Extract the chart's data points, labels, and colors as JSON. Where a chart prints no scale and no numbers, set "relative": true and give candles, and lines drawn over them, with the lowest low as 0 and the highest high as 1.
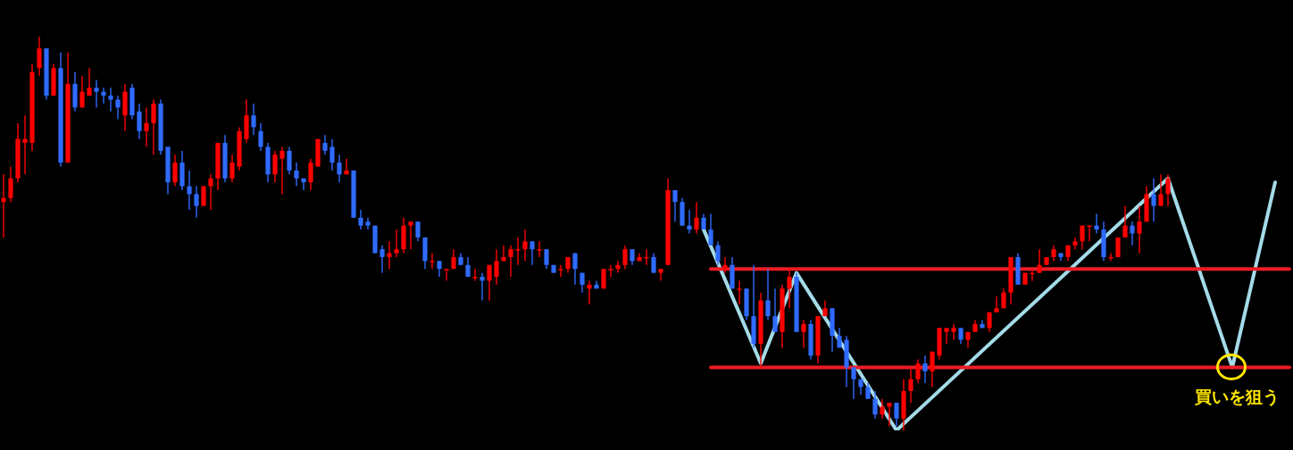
{
  "chart_data": {
    "type": "candlestick",
    "relative": true,
    "tick_labels": false,
    "categories": [
      null,
      null,
      null,
      null,
      null,
      null,
      null,
      null,
      null,
      null,
      null,
      null,
      null,
      null,
      null,
      null,
      null,
      null,
      null,
      null,
      null,
      null,
      null,
      null,
      null,
      null,
      null,
      null,
      null,
      null,
      null,
      null,
      null,
      null,
      null,
      null,
      null,
      null,
      null,
      null,
      null,
      null,
      null,
      null,
      null,
      null,
      null,
      null,
      null,
      null,
      null,
      null,
      null,
      null,
      null,
      null,
      null,
      null,
      null,
      null,
      null,
      null,
      null,
      null,
      null,
      null,
      null,
      null,
      null,
      null,
      null,
      null,
      null,
      null,
      null,
      null,
      null,
      null,
      null,
      null,
      null,
      null,
      null,
      null,
      null,
      null,
      null,
      null,
      null,
      null,
      null,
      null,
      null,
      null,
      null,
      null,
      null,
      null,
      null,
      null,
      null,
      null,
      null,
      null,
      null,
      null,
      null,
      null,
      null,
      null,
      null,
      null,
      null,
      null,
      null,
      null,
      null,
      null,
      null,
      null,
      null,
      null,
      null,
      null,
      null,
      null,
      null,
      null,
      null,
      null,
      null,
      null,
      null,
      null,
      null,
      null,
      null,
      null,
      null,
      null,
      null,
      null,
      null,
      null,
      null,
      null,
      null,
      null,
      null,
      null,
      null,
      null,
      null,
      null,
      null,
      null,
      null,
      null,
      null,
      null,
      null,
      null,
      null,
      null,
      null,
      null,
      null,
      null,
      null,
      null,
      null,
      null,
      null,
      null,
      null,
      null,
      null,
      null,
      null,
      null,
      null
    ],
    "ohlc": [
      [
        0.58,
        0.65,
        0.49,
        0.59
      ],
      [
        0.59,
        0.67,
        0.58,
        0.64
      ],
      [
        0.64,
        0.78,
        0.63,
        0.74
      ],
      [
        0.73,
        0.8,
        0.65,
        0.74
      ],
      [
        0.73,
        0.93,
        0.71,
        0.91
      ],
      [
        0.92,
        1,
        0.9,
        0.97
      ],
      [
        0.97,
        0.97,
        0.84,
        0.85
      ],
      [
        0.85,
        0.93,
        0.85,
        0.92
      ],
      [
        0.92,
        0.96,
        0.67,
        0.68
      ],
      [
        0.68,
        0.96,
        0.68,
        0.88
      ],
      [
        0.88,
        0.91,
        0.81,
        0.82
      ],
      [
        0.82,
        0.9,
        0.82,
        0.86
      ],
      [
        0.85,
        0.92,
        0.85,
        0.87
      ],
      [
        0.87,
        0.89,
        0.82,
        0.86
      ],
      [
        0.86,
        0.87,
        0.83,
        0.85
      ],
      [
        0.85,
        0.87,
        0.81,
        0.84
      ],
      [
        0.84,
        0.85,
        0.79,
        0.82
      ],
      [
        0.8,
        0.88,
        0.76,
        0.86
      ],
      [
        0.87,
        0.88,
        0.79,
        0.8
      ],
      [
        0.81,
        0.83,
        0.74,
        0.76
      ],
      [
        0.76,
        0.82,
        0.72,
        0.78
      ],
      [
        0.78,
        0.84,
        0.7,
        0.83
      ],
      [
        0.83,
        0.84,
        0.7,
        0.71
      ],
      [
        0.72,
        0.72,
        0.6,
        0.63
      ],
      [
        0.63,
        0.7,
        0.62,
        0.68
      ],
      [
        0.68,
        0.71,
        0.61,
        0.62
      ],
      [
        0.62,
        0.66,
        0.56,
        0.6
      ],
      [
        0.6,
        0.62,
        0.54,
        0.57
      ],
      [
        0.57,
        0.62,
        0.57,
        0.62
      ],
      [
        0.62,
        0.65,
        0.56,
        0.64
      ],
      [
        0.64,
        0.73,
        0.61,
        0.73
      ],
      [
        0.73,
        0.75,
        0.63,
        0.64
      ],
      [
        0.64,
        0.7,
        0.63,
        0.68
      ],
      [
        0.67,
        0.77,
        0.66,
        0.76
      ],
      [
        0.74,
        0.84,
        0.73,
        0.8
      ],
      [
        0.8,
        0.83,
        0.75,
        0.77
      ],
      [
        0.76,
        0.78,
        0.71,
        0.72
      ],
      [
        0.72,
        0.73,
        0.63,
        0.65
      ],
      [
        0.65,
        0.71,
        0.63,
        0.7
      ],
      [
        0.69,
        0.72,
        0.6,
        0.71
      ],
      [
        0.71,
        0.72,
        0.65,
        0.66
      ],
      [
        0.66,
        0.68,
        0.62,
        0.64
      ],
      [
        0.64,
        0.64,
        0.61,
        0.63
      ],
      [
        0.63,
        0.69,
        0.61,
        0.68
      ],
      [
        0.67,
        0.74,
        0.67,
        0.74
      ],
      [
        0.73,
        0.75,
        0.7,
        0.71
      ],
      [
        0.72,
        0.74,
        0.66,
        0.68
      ],
      [
        0.68,
        0.7,
        0.63,
        0.65
      ],
      [
        0.65,
        0.69,
        0.65,
        0.66
      ],
      [
        0.66,
        0.66,
        0.54,
        0.54
      ],
      [
        0.54,
        0.56,
        0.51,
        0.52
      ],
      [
        0.53,
        0.54,
        0.51,
        0.52
      ],
      [
        0.52,
        0.52,
        0.45,
        0.45
      ],
      [
        0.46,
        0.47,
        0.4,
        0.44
      ],
      [
        0.44,
        0.48,
        0.41,
        0.45
      ],
      [
        0.45,
        0.51,
        0.44,
        0.46
      ],
      [
        0.46,
        0.54,
        0.45,
        0.52
      ],
      [
        0.52,
        0.53,
        0.46,
        0.53
      ],
      [
        0.53,
        0.53,
        0.48,
        0.49
      ],
      [
        0.49,
        0.49,
        0.41,
        0.43
      ],
      [
        0.43,
        0.45,
        0.41,
        0.43
      ],
      [
        0.43,
        0.43,
        0.39,
        0.41
      ],
      [
        0.41,
        0.41,
        0.38,
        0.41
      ],
      [
        0.41,
        0.46,
        0.41,
        0.44
      ],
      [
        0.44,
        0.45,
        0.42,
        0.42
      ],
      [
        0.42,
        0.44,
        0.39,
        0.39
      ],
      [
        0.39,
        0.41,
        0.38,
        0.39
      ],
      [
        0.39,
        0.4,
        0.33,
        0.38
      ],
      [
        0.38,
        0.42,
        0.33,
        0.42
      ],
      [
        0.39,
        0.46,
        0.37,
        0.43
      ],
      [
        0.43,
        0.47,
        0.43,
        0.44
      ],
      [
        0.44,
        0.47,
        0.39,
        0.46
      ],
      [
        0.46,
        0.49,
        0.42,
        0.46
      ],
      [
        0.46,
        0.51,
        0.43,
        0.48
      ],
      [
        0.48,
        0.48,
        0.42,
        0.46
      ],
      [
        0.46,
        0.48,
        0.44,
        0.46
      ],
      [
        0.46,
        0.46,
        0.41,
        0.42
      ],
      [
        0.42,
        0.42,
        0.4,
        0.4
      ],
      [
        0.41,
        0.42,
        0.39,
        0.41
      ],
      [
        0.41,
        0.44,
        0.4,
        0.44
      ],
      [
        0.45,
        0.45,
        0.37,
        0.41
      ],
      [
        0.4,
        0.4,
        0.35,
        0.37
      ],
      [
        0.36,
        0.38,
        0.32,
        0.37
      ],
      [
        0.37,
        0.38,
        0.36,
        0.36
      ],
      [
        0.36,
        0.41,
        0.36,
        0.41
      ],
      [
        0.41,
        0.42,
        0.39,
        0.41
      ],
      [
        0.41,
        0.43,
        0.4,
        0.42
      ],
      [
        0.42,
        0.47,
        0.41,
        0.46
      ],
      [
        0.46,
        0.46,
        0.42,
        0.43
      ],
      [
        0.43,
        0.45,
        0.43,
        0.44
      ],
      [
        0.44,
        0.46,
        0.42,
        0.44
      ],
      [
        0.44,
        0.45,
        0.4,
        0.4
      ],
      [
        0.4,
        0.41,
        0.38,
        0.41
      ],
      [
        0.42,
        0.64,
        0.42,
        0.61
      ],
      [
        0.61,
        0.61,
        0.53,
        0.58
      ],
      [
        0.58,
        0.59,
        0.52,
        0.52
      ],
      [
        0.52,
        0.56,
        0.5,
        0.51
      ],
      [
        0.51,
        0.58,
        0.5,
        0.54
      ],
      [
        0.54,
        0.55,
        0.51,
        0.51
      ],
      [
        0.51,
        0.55,
        0.47,
        0.47
      ],
      [
        0.47,
        0.48,
        0.42,
        0.43
      ],
      [
        0.41,
        0.44,
        0.4,
        0.42
      ],
      [
        0.42,
        0.44,
        0.36,
        0.36
      ],
      [
        0.36,
        0.38,
        0.32,
        0.36
      ],
      [
        0.36,
        0.36,
        0.28,
        0.29
      ],
      [
        0.29,
        0.42,
        0.21,
        0.22
      ],
      [
        0.22,
        0.35,
        0.16,
        0.33
      ],
      [
        0.33,
        0.41,
        0.28,
        0.29
      ],
      [
        0.29,
        0.36,
        0.25,
        0.25
      ],
      [
        0.25,
        0.37,
        0.21,
        0.36
      ],
      [
        0.36,
        0.41,
        0.31,
        0.39
      ],
      [
        0.39,
        0.4,
        0.25,
        0.25
      ],
      [
        0.25,
        0.28,
        0.21,
        0.27
      ],
      [
        0.27,
        0.28,
        0.18,
        0.19
      ],
      [
        0.19,
        0.29,
        0.17,
        0.29
      ],
      [
        0.29,
        0.33,
        0.29,
        0.31
      ],
      [
        0.31,
        0.31,
        0.2,
        0.24
      ],
      [
        0.24,
        0.26,
        0.21,
        0.21
      ],
      [
        0.23,
        0.24,
        0.11,
        0.16
      ],
      [
        0.16,
        0.16,
        0.08,
        0.13
      ],
      [
        0.13,
        0.13,
        0.09,
        0.11
      ],
      [
        0.11,
        0.12,
        0.08,
        0.08
      ],
      [
        0.08,
        0.1,
        0.03,
        0.04
      ],
      [
        0.04,
        0.08,
        0.03,
        0.06
      ],
      [
        0.06,
        0.07,
        0.01,
        0.07
      ],
      [
        0.07,
        0.07,
        0.01,
        0.03
      ],
      [
        0.03,
        0.13,
        0,
        0.1
      ],
      [
        0.1,
        0.16,
        0.07,
        0.13
      ],
      [
        0.13,
        0.18,
        0.12,
        0.17
      ],
      [
        0.17,
        0.19,
        0.12,
        0.15
      ],
      [
        0.15,
        0.2,
        0.11,
        0.2
      ],
      [
        0.19,
        0.26,
        0.18,
        0.26
      ],
      [
        0.25,
        0.26,
        0.22,
        0.26
      ],
      [
        0.25,
        0.27,
        0.23,
        0.26
      ],
      [
        0.26,
        0.26,
        0.22,
        0.23
      ],
      [
        0.23,
        0.25,
        0.21,
        0.25
      ],
      [
        0.25,
        0.28,
        0.25,
        0.27
      ],
      [
        0.27,
        0.28,
        0.26,
        0.26
      ],
      [
        0.26,
        0.3,
        0.25,
        0.3
      ],
      [
        0.3,
        0.34,
        0.3,
        0.31
      ],
      [
        0.31,
        0.36,
        0.31,
        0.35
      ],
      [
        0.35,
        0.44,
        0.32,
        0.44
      ],
      [
        0.44,
        0.45,
        0.37,
        0.37
      ],
      [
        0.37,
        0.4,
        0.37,
        0.4
      ],
      [
        0.4,
        0.41,
        0.38,
        0.4
      ],
      [
        0.4,
        0.46,
        0.4,
        0.42
      ],
      [
        0.42,
        0.44,
        0.42,
        0.44
      ],
      [
        0.44,
        0.47,
        0.43,
        0.46
      ],
      [
        0.45,
        0.45,
        0.43,
        0.44
      ],
      [
        0.44,
        0.47,
        0.43,
        0.47
      ],
      [
        0.47,
        0.49,
        0.46,
        0.48
      ],
      [
        0.48,
        0.52,
        0.46,
        0.52
      ],
      [
        0.52,
        0.52,
        0.48,
        0.52
      ],
      [
        0.52,
        0.55,
        0.5,
        0.51
      ],
      [
        0.51,
        0.53,
        0.43,
        0.44
      ],
      [
        0.44,
        0.45,
        0.43,
        0.44
      ],
      [
        0.44,
        0.49,
        0.44,
        0.49
      ],
      [
        0.49,
        0.57,
        0.49,
        0.52
      ],
      [
        0.52,
        0.53,
        0.47,
        0.5
      ],
      [
        0.5,
        0.57,
        0.45,
        0.53
      ],
      [
        0.53,
        0.62,
        0.53,
        0.6
      ],
      [
        0.6,
        0.64,
        0.53,
        0.57
      ],
      [
        0.57,
        0.65,
        0.57,
        0.6
      ],
      [
        0.6,
        0.65,
        0.57,
        0.64
      ],
      null,
      null,
      null,
      null,
      null,
      null,
      null,
      null,
      null,
      null,
      null,
      null,
      null,
      null,
      null,
      null,
      null
    ],
    "colors": [
      "#ff0000",
      "#ff0000",
      "#ff0000",
      "#ff0000",
      "#ff0000",
      "#ff0000",
      "#2f6bff",
      "#ff0000",
      "#2f6bff",
      "#ff0000",
      "#2f6bff",
      "#ff0000",
      "#ff0000",
      "#2f6bff",
      "#2f6bff",
      "#2f6bff",
      "#2f6bff",
      "#ff0000",
      "#2f6bff",
      "#2f6bff",
      "#ff0000",
      "#ff0000",
      "#2f6bff",
      "#2f6bff",
      "#ff0000",
      "#2f6bff",
      "#2f6bff",
      "#2f6bff",
      "#ff0000",
      "#ff0000",
      "#ff0000",
      "#2f6bff",
      "#ff0000",
      "#ff0000",
      "#ff0000",
      "#2f6bff",
      "#2f6bff",
      "#2f6bff",
      "#ff0000",
      "#ff0000",
      "#2f6bff",
      "#2f6bff",
      "#2f6bff",
      "#ff0000",
      "#ff0000",
      "#2f6bff",
      "#2f6bff",
      "#2f6bff",
      "#ff0000",
      "#2f6bff",
      "#2f6bff",
      "#2f6bff",
      "#2f6bff",
      "#2f6bff",
      "#ff0000",
      "#ff0000",
      "#ff0000",
      "#ff0000",
      "#2f6bff",
      "#2f6bff",
      "#ff0000",
      "#2f6bff",
      "#ff0000",
      "#ff0000",
      "#2f6bff",
      "#2f6bff",
      "#ff0000",
      "#2f6bff",
      "#ff0000",
      "#ff0000",
      "#ff0000",
      "#ff0000",
      "#ff0000",
      "#ff0000",
      "#2f6bff",
      "#ff0000",
      "#2f6bff",
      "#2f6bff",
      "#ff0000",
      "#ff0000",
      "#2f6bff",
      "#2f6bff",
      "#ff0000",
      "#2f6bff",
      "#ff0000",
      "#ff0000",
      "#ff0000",
      "#ff0000",
      "#2f6bff",
      "#ff0000",
      "#ff0000",
      "#2f6bff",
      "#ff0000",
      "#ff0000",
      "#2f6bff",
      "#2f6bff",
      "#2f6bff",
      "#ff0000",
      "#2f6bff",
      "#2f6bff",
      "#2f6bff",
      "#ff0000",
      "#2f6bff",
      "#ff0000",
      "#2f6bff",
      "#2f6bff",
      "#ff0000",
      "#2f6bff",
      "#2f6bff",
      "#ff0000",
      "#ff0000",
      "#2f6bff",
      "#ff0000",
      "#2f6bff",
      "#ff0000",
      "#ff0000",
      "#2f6bff",
      "#2f6bff",
      "#2f6bff",
      "#2f6bff",
      "#2f6bff",
      "#2f6bff",
      "#2f6bff",
      "#ff0000",
      "#ff0000",
      "#2f6bff",
      "#ff0000",
      "#ff0000",
      "#ff0000",
      "#2f6bff",
      "#ff0000",
      "#ff0000",
      "#ff0000",
      "#ff0000",
      "#2f6bff",
      "#ff0000",
      "#ff0000",
      "#2f6bff",
      "#ff0000",
      "#ff0000",
      "#ff0000",
      "#ff0000",
      "#2f6bff",
      "#ff0000",
      "#ff0000",
      "#ff0000",
      "#ff0000",
      "#ff0000",
      "#2f6bff",
      "#ff0000",
      "#ff0000",
      "#ff0000",
      "#ff0000",
      "#2f6bff",
      "#2f6bff",
      "#ff0000",
      "#ff0000",
      "#ff0000",
      "#2f6bff",
      "#ff0000",
      "#ff0000",
      "#2f6bff",
      "#ff0000",
      "#ff0000",
      null,
      null,
      null,
      null,
      null,
      null,
      null,
      null,
      null,
      null,
      null,
      null,
      null,
      null,
      null,
      null,
      null
    ],
    "series": [
      {
        "type": "line",
        "color": "#ee1c25",
        "values": [
          null,
          null,
          null,
          null,
          null,
          null,
          null,
          null,
          null,
          null,
          null,
          null,
          null,
          null,
          null,
          null,
          null,
          null,
          null,
          null,
          null,
          null,
          null,
          null,
          null,
          null,
          null,
          null,
          null,
          null,
          null,
          null,
          null,
          null,
          null,
          null,
          null,
          null,
          null,
          null,
          null,
          null,
          null,
          null,
          null,
          null,
          null,
          null,
          null,
          null,
          null,
          null,
          null,
          null,
          null,
          null,
          null,
          null,
          null,
          null,
          null,
          null,
          null,
          null,
          null,
          null,
          null,
          null,
          null,
          null,
          null,
          null,
          null,
          null,
          null,
          null,
          null,
          null,
          null,
          null,
          null,
          null,
          null,
          null,
          null,
          null,
          null,
          null,
          null,
          null,
          null,
          null,
          null,
          null,
          null,
          null,
          null,
          null,
          null,
          0.41,
          null,
          null,
          null,
          null,
          null,
          null,
          null,
          null,
          null,
          null,
          null,
          null,
          null,
          null,
          null,
          null,
          null,
          null,
          null,
          null,
          null,
          null,
          null,
          null,
          null,
          null,
          null,
          null,
          null,
          null,
          null,
          null,
          null,
          null,
          null,
          null,
          null,
          null,
          null,
          null,
          null,
          null,
          null,
          null,
          null,
          null,
          null,
          null,
          null,
          null,
          null,
          null,
          null,
          null,
          null,
          null,
          null,
          null,
          null,
          null,
          null,
          null,
          null,
          null,
          null,
          null,
          null,
          null,
          null,
          null,
          null,
          null,
          null,
          null,
          null,
          null,
          null,
          null,
          null,
          null,
          0.41
        ]
      },
      {
        "type": "line",
        "color": "#ee1c25",
        "values": [
          null,
          null,
          null,
          null,
          null,
          null,
          null,
          null,
          null,
          null,
          null,
          null,
          null,
          null,
          null,
          null,
          null,
          null,
          null,
          null,
          null,
          null,
          null,
          null,
          null,
          null,
          null,
          null,
          null,
          null,
          null,
          null,
          null,
          null,
          null,
          null,
          null,
          null,
          null,
          null,
          null,
          null,
          null,
          null,
          null,
          null,
          null,
          null,
          null,
          null,
          null,
          null,
          null,
          null,
          null,
          null,
          null,
          null,
          null,
          null,
          null,
          null,
          null,
          null,
          null,
          null,
          null,
          null,
          null,
          null,
          null,
          null,
          null,
          null,
          null,
          null,
          null,
          null,
          null,
          null,
          null,
          null,
          null,
          null,
          null,
          null,
          null,
          null,
          null,
          null,
          null,
          null,
          null,
          null,
          null,
          null,
          null,
          null,
          null,
          0.16,
          null,
          null,
          null,
          null,
          null,
          null,
          null,
          null,
          null,
          null,
          null,
          null,
          null,
          null,
          null,
          null,
          null,
          null,
          null,
          null,
          null,
          null,
          null,
          null,
          null,
          null,
          null,
          null,
          null,
          null,
          null,
          null,
          null,
          null,
          null,
          null,
          null,
          null,
          null,
          null,
          null,
          null,
          null,
          null,
          null,
          null,
          null,
          null,
          null,
          null,
          null,
          null,
          null,
          null,
          null,
          null,
          null,
          null,
          null,
          null,
          null,
          null,
          null,
          null,
          null,
          null,
          null,
          null,
          null,
          null,
          null,
          null,
          null,
          null,
          null,
          null,
          null,
          null,
          null,
          null,
          0.16
        ]
      },
      {
        "type": "line",
        "color": "#a4dbe8",
        "values": [
          null,
          null,
          null,
          null,
          null,
          null,
          null,
          null,
          null,
          null,
          null,
          null,
          null,
          null,
          null,
          null,
          null,
          null,
          null,
          null,
          null,
          null,
          null,
          null,
          null,
          null,
          null,
          null,
          null,
          null,
          null,
          null,
          null,
          null,
          null,
          null,
          null,
          null,
          null,
          null,
          null,
          null,
          null,
          null,
          null,
          null,
          null,
          null,
          null,
          null,
          null,
          null,
          null,
          null,
          null,
          null,
          null,
          null,
          null,
          null,
          null,
          null,
          null,
          null,
          null,
          null,
          null,
          null,
          null,
          null,
          null,
          null,
          null,
          null,
          null,
          null,
          null,
          null,
          null,
          null,
          null,
          null,
          null,
          null,
          null,
          null,
          null,
          null,
          null,
          null,
          null,
          null,
          null,
          null,
          null,
          null,
          null,
          null,
          0.51,
          null,
          null,
          null,
          null,
          null,
          null,
          null,
          0.17,
          null,
          null,
          null,
          null,
          0.4,
          null,
          null,
          null,
          null,
          null,
          null,
          null,
          null,
          null,
          null,
          null,
          null,
          null,
          0,
          null,
          null,
          null,
          null,
          null,
          null,
          null,
          null,
          null,
          null,
          null,
          null,
          null,
          null,
          null,
          null,
          null,
          null,
          null,
          null,
          null,
          null,
          null,
          null,
          null,
          null,
          null,
          null,
          null,
          null,
          null,
          null,
          null,
          null,
          null,
          null,
          null,
          0.64,
          null,
          null,
          null,
          null,
          null,
          null,
          null,
          null,
          0.16,
          null,
          null,
          null,
          null,
          null,
          0.63,
          null,
          null
        ]
      }
    ],
    "annotations": [
      "買いを狙う"
    ]
  }
}
